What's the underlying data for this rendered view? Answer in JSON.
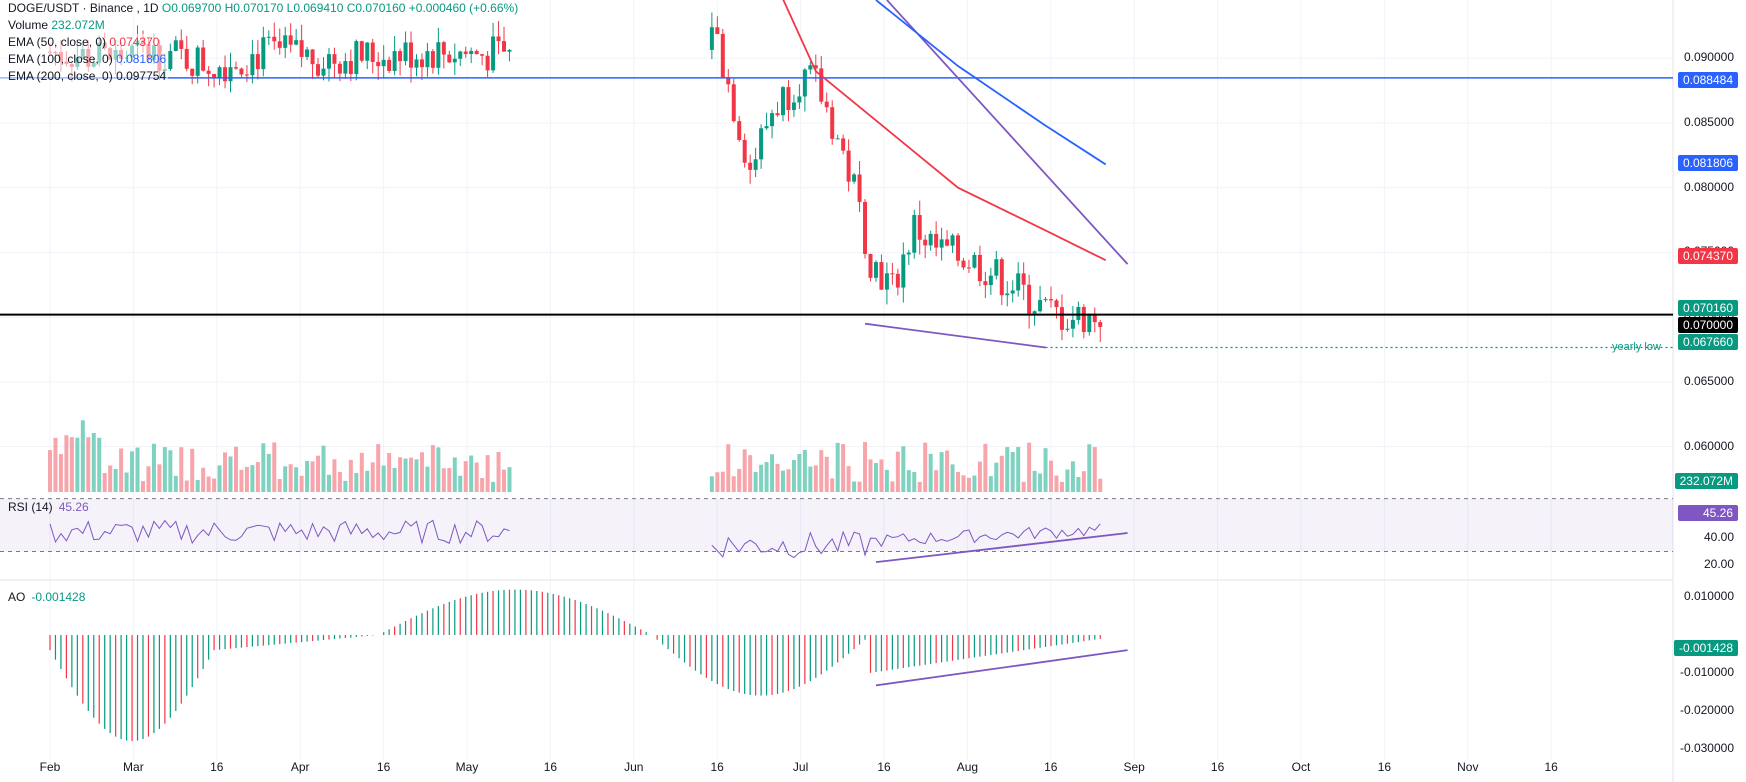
{
  "legend": {
    "symbol": "DOGE/USDT",
    "exchange": "Binance",
    "interval": "1D",
    "ohlc": "O0.069700 H0.070170 L0.069410 C0.070160 +0.000460 (+0.66%)",
    "volume_label": "Volume",
    "volume_value": "232.072M",
    "ema50_label": "EMA (50, close, 0)",
    "ema50_value": "0.074370",
    "ema100_label": "EMA (100, close, 0)",
    "ema100_value": "0.081806",
    "ema200_label": "EMA (200, close, 0)",
    "ema200_value": "0.097754"
  },
  "rsi_label": {
    "name": "RSI (14)",
    "value": "45.26"
  },
  "ao_label": {
    "name": "AO",
    "value": "-0.001428"
  },
  "price_badges": {
    "resistance": "0.088484",
    "ema100": "0.081806",
    "ema50": "0.074370",
    "last": "0.070160",
    "level": "0.070000",
    "yearly_low": "0.067660",
    "volume": "232.072M",
    "rsi": "45.26",
    "ao": "-0.001428"
  },
  "annotations": {
    "yearly_low": "yearly low"
  },
  "colors": {
    "up": "#089981",
    "down": "#f23645",
    "up_vol": "#7fd1c0",
    "down_vol": "#f7a5ab",
    "ema50": "#f23645",
    "ema100": "#2962ff",
    "resistance": "#2962ff",
    "trend": "#7e57c2",
    "level": "#000000",
    "rsi_line": "#7e57c2"
  },
  "chart_data": [
    {
      "type": "candlestick",
      "title": "DOGE/USDT, 1D",
      "x_ticks": [
        "Feb",
        "Mar",
        "16",
        "Apr",
        "16",
        "May",
        "16",
        "Jun",
        "16",
        "Jul",
        "16",
        "Aug",
        "16",
        "Sep",
        "16",
        "Oct",
        "16",
        "Nov",
        "16"
      ],
      "y_ticks": [
        "0.090000",
        "0.085000",
        "0.080000",
        "0.075000",
        "0.070000",
        "0.065000",
        "0.060000"
      ],
      "ylim": [
        0.0565,
        0.0945
      ],
      "series": [
        {
          "name": "EMA (50, close, 0)",
          "color": "#f23645",
          "points": [
            [
              "Jun 13",
              0.0955
            ],
            [
              "Jun 20",
              0.089
            ],
            [
              "Jul 1",
              0.0852
            ],
            [
              "Jul 16",
              0.08
            ],
            [
              "Aug 1",
              0.0767
            ],
            [
              "Aug 12",
              0.0744
            ]
          ]
        },
        {
          "name": "EMA (100, close, 0)",
          "color": "#2962ff",
          "points": [
            [
              "Jul 1",
              0.0945
            ],
            [
              "Jul 16",
              0.0894
            ],
            [
              "Aug 1",
              0.0848
            ],
            [
              "Aug 12",
              0.0818
            ]
          ]
        },
        {
          "name": "EMA (200, close, 0)",
          "color": "#131722",
          "points": []
        }
      ],
      "lines": [
        {
          "kind": "horizontal",
          "value": 0.088484,
          "color": "#2962ff"
        },
        {
          "kind": "horizontal",
          "value": 0.0702,
          "color": "#000000"
        },
        {
          "kind": "horizontal-dotted",
          "value": 0.06766,
          "color": "#089981",
          "label": "yearly low"
        },
        {
          "kind": "trendline",
          "from": [
            "Jul 3",
            0.0945
          ],
          "to": [
            "Aug 16",
            0.0741
          ],
          "color": "#7e57c2"
        },
        {
          "kind": "trendline",
          "from": [
            "Jun 29",
            0.0695
          ],
          "to": [
            "Aug 1",
            0.06766
          ],
          "color": "#7e57c2"
        }
      ],
      "last_close": 0.07016
    },
    {
      "type": "bar",
      "title": "Volume",
      "last_value": "232.072M"
    },
    {
      "type": "line",
      "title": "RSI (14)",
      "y_ticks": [
        "20.00",
        "40.00"
      ],
      "ylim": [
        10,
        75
      ],
      "bands": [
        30,
        70
      ],
      "last_value": 45.26
    },
    {
      "type": "bar",
      "title": "AO",
      "y_ticks": [
        "0.010000",
        "-0.010000",
        "-0.020000",
        "-0.030000"
      ],
      "ylim": [
        -0.033,
        0.014
      ],
      "last_value": -0.001428
    }
  ]
}
